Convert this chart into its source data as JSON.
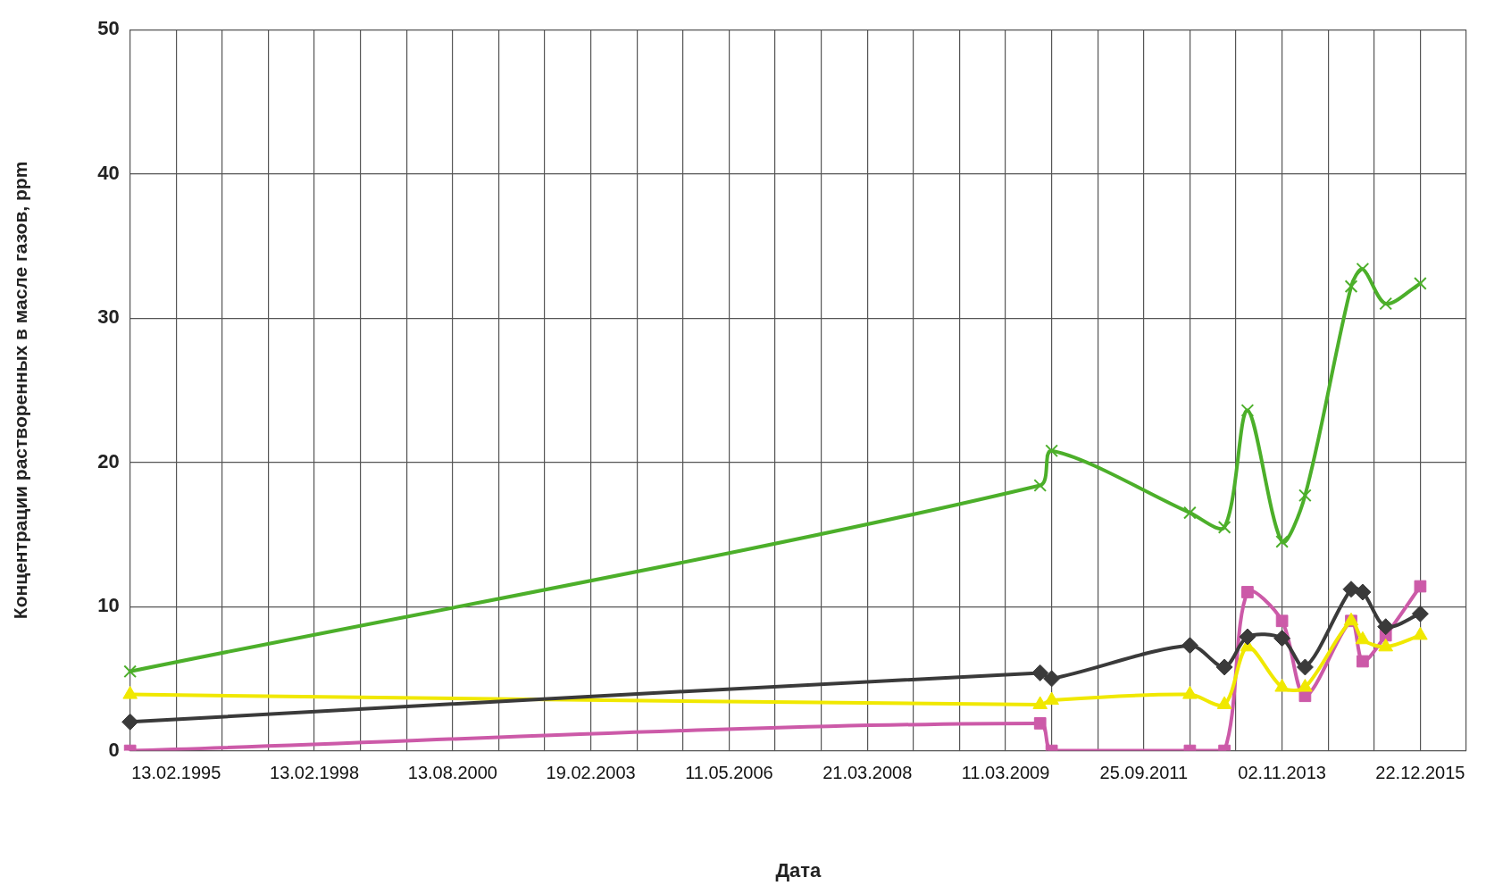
{
  "chart_data": {
    "type": "line",
    "xlabel": "Дата",
    "ylabel": "Концентрации растворенных в масле газов, ppm",
    "ylim": [
      0,
      50
    ],
    "yticks": [
      0,
      10,
      20,
      30,
      40,
      50
    ],
    "categories": [
      null,
      null,
      null,
      null,
      "13.02.1995",
      null,
      null,
      null,
      null,
      null,
      null,
      null,
      null,
      null,
      null,
      null,
      "13.02.1998",
      null,
      null,
      null,
      null,
      null,
      null,
      null,
      null,
      null,
      null,
      null,
      "13.08.2000",
      null,
      null,
      null,
      null,
      null,
      null,
      null,
      null,
      null,
      null,
      null,
      "19.02.2003",
      null,
      null,
      null,
      null,
      null,
      null,
      null,
      null,
      null,
      null,
      null,
      "11.05.2006",
      null,
      null,
      null,
      null,
      null,
      null,
      null,
      null,
      null,
      null,
      null,
      "21.03.2008",
      null,
      null,
      null,
      null,
      null,
      null,
      null,
      null,
      null,
      null,
      null,
      "11.03.2009",
      null,
      null,
      null,
      null,
      null,
      null,
      null,
      null,
      null,
      null,
      null,
      "25.09.2011",
      null,
      null,
      null,
      null,
      null,
      null,
      null,
      null,
      null,
      null,
      null,
      "02.11.2013",
      null,
      null,
      null,
      null,
      null,
      null,
      null,
      null,
      null,
      null,
      null,
      "22.12.2015",
      null,
      null,
      null,
      null
    ],
    "grid": true,
    "legend": false,
    "line_style": "solid",
    "series": [
      {
        "color": "#4caf2a",
        "marker": "cross",
        "values": [
          5.5,
          null,
          null,
          null,
          null,
          null,
          null,
          null,
          null,
          null,
          null,
          null,
          null,
          null,
          null,
          null,
          null,
          null,
          null,
          null,
          null,
          null,
          null,
          null,
          null,
          null,
          null,
          null,
          null,
          null,
          null,
          null,
          null,
          null,
          null,
          null,
          null,
          null,
          null,
          null,
          null,
          null,
          null,
          null,
          null,
          null,
          null,
          null,
          null,
          null,
          null,
          null,
          null,
          null,
          null,
          null,
          null,
          null,
          null,
          null,
          null,
          null,
          null,
          null,
          null,
          null,
          null,
          null,
          null,
          null,
          null,
          null,
          null,
          null,
          null,
          null,
          null,
          null,
          null,
          18.4,
          20.8,
          null,
          null,
          null,
          null,
          null,
          null,
          null,
          null,
          null,
          null,
          null,
          16.5,
          null,
          null,
          15.5,
          null,
          23.6,
          null,
          null,
          14.5,
          null,
          17.7,
          null,
          null,
          null,
          32.2,
          33.4,
          null,
          31.0,
          null,
          null,
          32.4,
          null,
          null,
          null,
          null
        ]
      },
      {
        "color": "#3a3a3a",
        "marker": "diamond",
        "values": [
          2.0,
          null,
          null,
          null,
          null,
          null,
          null,
          null,
          null,
          null,
          null,
          null,
          null,
          null,
          null,
          null,
          null,
          null,
          null,
          null,
          null,
          null,
          null,
          null,
          null,
          null,
          null,
          null,
          null,
          null,
          null,
          null,
          null,
          null,
          null,
          null,
          null,
          null,
          null,
          null,
          null,
          null,
          null,
          null,
          null,
          null,
          null,
          null,
          null,
          null,
          null,
          null,
          null,
          null,
          null,
          null,
          null,
          null,
          null,
          null,
          null,
          null,
          null,
          null,
          null,
          null,
          null,
          null,
          null,
          null,
          null,
          null,
          null,
          null,
          null,
          null,
          null,
          null,
          null,
          5.4,
          5.0,
          null,
          null,
          null,
          null,
          null,
          null,
          null,
          null,
          null,
          null,
          null,
          7.3,
          null,
          null,
          5.8,
          null,
          7.9,
          null,
          null,
          7.8,
          null,
          5.8,
          null,
          null,
          null,
          11.2,
          11.0,
          null,
          8.6,
          null,
          null,
          9.5,
          null,
          null,
          null,
          null
        ]
      },
      {
        "color": "#f0e800",
        "marker": "triangle",
        "values": [
          3.9,
          null,
          null,
          null,
          null,
          null,
          null,
          null,
          null,
          null,
          null,
          null,
          null,
          null,
          null,
          null,
          null,
          null,
          null,
          null,
          null,
          null,
          null,
          null,
          null,
          null,
          null,
          null,
          null,
          null,
          null,
          null,
          null,
          null,
          null,
          null,
          null,
          null,
          null,
          null,
          null,
          null,
          null,
          null,
          null,
          null,
          null,
          null,
          null,
          null,
          null,
          null,
          null,
          null,
          null,
          null,
          null,
          null,
          null,
          null,
          null,
          null,
          null,
          null,
          null,
          null,
          null,
          null,
          null,
          null,
          null,
          null,
          null,
          null,
          null,
          null,
          null,
          null,
          null,
          3.2,
          3.5,
          null,
          null,
          null,
          null,
          null,
          null,
          null,
          null,
          null,
          null,
          null,
          3.9,
          null,
          null,
          3.2,
          null,
          7.2,
          null,
          null,
          4.4,
          null,
          4.4,
          null,
          null,
          null,
          9.0,
          7.7,
          null,
          7.2,
          null,
          null,
          8.0,
          null,
          null,
          null,
          null
        ]
      },
      {
        "color": "#cc5aa8",
        "marker": "square",
        "values": [
          0,
          null,
          null,
          null,
          null,
          null,
          null,
          null,
          null,
          null,
          null,
          null,
          null,
          null,
          null,
          null,
          null,
          null,
          null,
          null,
          null,
          null,
          null,
          null,
          null,
          null,
          null,
          null,
          null,
          null,
          null,
          null,
          null,
          null,
          null,
          null,
          null,
          null,
          null,
          null,
          null,
          null,
          null,
          null,
          null,
          null,
          null,
          null,
          null,
          null,
          null,
          null,
          null,
          null,
          null,
          null,
          null,
          null,
          null,
          null,
          null,
          null,
          null,
          null,
          null,
          null,
          null,
          null,
          null,
          null,
          null,
          null,
          null,
          null,
          null,
          null,
          null,
          null,
          null,
          1.9,
          0,
          null,
          null,
          null,
          null,
          null,
          null,
          null,
          null,
          null,
          null,
          null,
          0,
          null,
          null,
          0,
          null,
          11.0,
          null,
          null,
          9.0,
          null,
          3.8,
          null,
          null,
          null,
          9.0,
          6.2,
          null,
          8.0,
          null,
          null,
          11.4,
          null,
          null,
          null,
          null
        ]
      }
    ]
  }
}
